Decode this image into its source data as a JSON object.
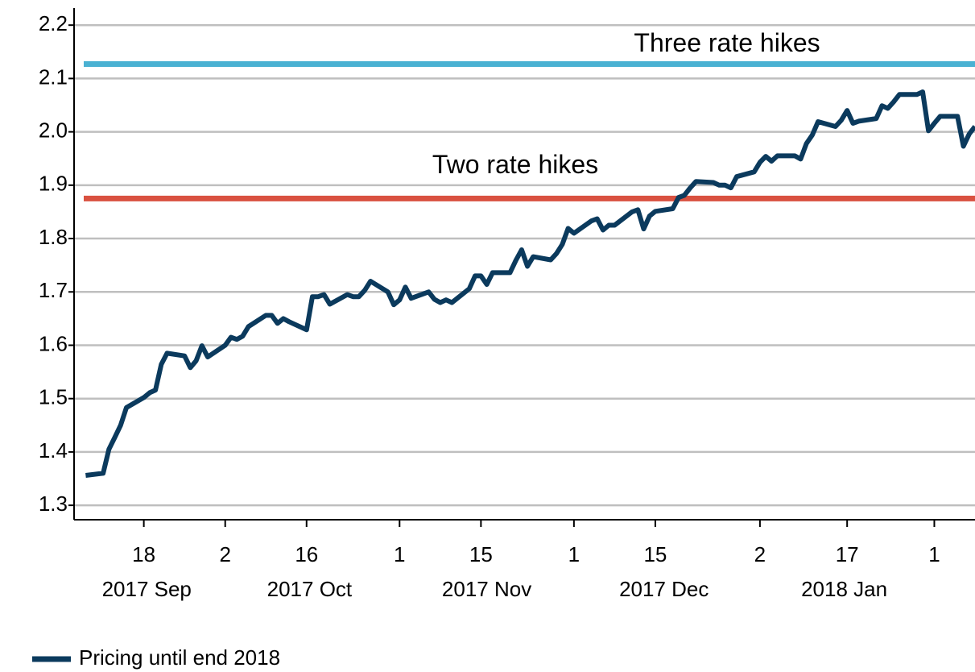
{
  "chart_data": {
    "type": "line",
    "x": [
      "2017-09-08",
      "2017-09-11",
      "2017-09-12",
      "2017-09-13",
      "2017-09-14",
      "2017-09-15",
      "2017-09-18",
      "2017-09-19",
      "2017-09-20",
      "2017-09-21",
      "2017-09-22",
      "2017-09-25",
      "2017-09-26",
      "2017-09-27",
      "2017-09-28",
      "2017-09-29",
      "2017-10-02",
      "2017-10-03",
      "2017-10-04",
      "2017-10-05",
      "2017-10-06",
      "2017-10-09",
      "2017-10-10",
      "2017-10-11",
      "2017-10-12",
      "2017-10-13",
      "2017-10-16",
      "2017-10-17",
      "2017-10-18",
      "2017-10-19",
      "2017-10-20",
      "2017-10-23",
      "2017-10-24",
      "2017-10-25",
      "2017-10-26",
      "2017-10-27",
      "2017-10-30",
      "2017-10-31",
      "2017-11-01",
      "2017-11-02",
      "2017-11-03",
      "2017-11-06",
      "2017-11-07",
      "2017-11-08",
      "2017-11-09",
      "2017-11-10",
      "2017-11-13",
      "2017-11-14",
      "2017-11-15",
      "2017-11-16",
      "2017-11-17",
      "2017-11-20",
      "2017-11-21",
      "2017-11-22",
      "2017-11-23",
      "2017-11-24",
      "2017-11-27",
      "2017-11-28",
      "2017-11-29",
      "2017-11-30",
      "2017-12-01",
      "2017-12-04",
      "2017-12-05",
      "2017-12-06",
      "2017-12-07",
      "2017-12-08",
      "2017-12-11",
      "2017-12-12",
      "2017-12-13",
      "2017-12-14",
      "2017-12-15",
      "2017-12-18",
      "2017-12-19",
      "2017-12-20",
      "2017-12-21",
      "2017-12-22",
      "2017-12-25",
      "2017-12-26",
      "2017-12-27",
      "2017-12-28",
      "2017-12-29",
      "2018-01-01",
      "2018-01-02",
      "2018-01-03",
      "2018-01-04",
      "2018-01-05",
      "2018-01-08",
      "2018-01-09",
      "2018-01-10",
      "2018-01-11",
      "2018-01-12",
      "2018-01-15",
      "2018-01-16",
      "2018-01-17",
      "2018-01-18",
      "2018-01-19",
      "2018-01-22",
      "2018-01-23",
      "2018-01-24",
      "2018-01-25",
      "2018-01-26",
      "2018-01-29",
      "2018-01-30",
      "2018-01-31",
      "2018-02-01",
      "2018-02-02",
      "2018-02-05",
      "2018-02-06",
      "2018-02-07",
      "2018-02-08"
    ],
    "series": [
      {
        "name": "Pricing until end 2018",
        "color": "#0b3a5d",
        "values": [
          1.356,
          1.36,
          1.405,
          1.427,
          1.45,
          1.483,
          1.502,
          1.511,
          1.516,
          1.564,
          1.585,
          1.58,
          1.558,
          1.571,
          1.599,
          1.578,
          1.6,
          1.615,
          1.611,
          1.617,
          1.635,
          1.656,
          1.656,
          1.641,
          1.65,
          1.644,
          1.629,
          1.691,
          1.691,
          1.695,
          1.677,
          1.695,
          1.691,
          1.691,
          1.703,
          1.72,
          1.7,
          1.676,
          1.685,
          1.709,
          1.688,
          1.7,
          1.686,
          1.68,
          1.685,
          1.68,
          1.706,
          1.73,
          1.73,
          1.714,
          1.736,
          1.736,
          1.759,
          1.779,
          1.748,
          1.766,
          1.76,
          1.772,
          1.789,
          1.819,
          1.81,
          1.833,
          1.837,
          1.816,
          1.825,
          1.825,
          1.85,
          1.854,
          1.818,
          1.842,
          1.851,
          1.856,
          1.877,
          1.881,
          1.895,
          1.907,
          1.905,
          1.9,
          1.9,
          1.895,
          1.916,
          1.925,
          1.943,
          1.954,
          1.945,
          1.955,
          1.955,
          1.949,
          1.978,
          1.994,
          2.019,
          2.01,
          2.022,
          2.04,
          2.016,
          2.02,
          2.025,
          2.049,
          2.044,
          2.056,
          2.07,
          2.07,
          2.075,
          2.002,
          2.016,
          2.029,
          2.029,
          1.973,
          1.996,
          2.01
        ]
      }
    ],
    "reference_lines": [
      {
        "label": "Three rate hikes",
        "value": 2.127,
        "color": "#4ab1d2"
      },
      {
        "label": "Two rate hikes",
        "value": 1.875,
        "color": "#d95140"
      }
    ],
    "xlim": [
      "2017-09-06",
      "2018-02-08"
    ],
    "xticks": [
      {
        "value": "2017-09-18",
        "label": "18"
      },
      {
        "value": "2017-10-02",
        "label": "2"
      },
      {
        "value": "2017-10-16",
        "label": "16"
      },
      {
        "value": "2017-11-01",
        "label": "1"
      },
      {
        "value": "2017-11-15",
        "label": "15"
      },
      {
        "value": "2017-12-01",
        "label": "1"
      },
      {
        "value": "2017-12-15",
        "label": "15"
      },
      {
        "value": "2018-01-02",
        "label": "2"
      },
      {
        "value": "2018-01-17",
        "label": "17"
      },
      {
        "value": "2018-02-01",
        "label": "1"
      }
    ],
    "month_labels": [
      {
        "value": "2017-09",
        "label": "2017 Sep"
      },
      {
        "value": "2017-10",
        "label": "2017 Oct"
      },
      {
        "value": "2017-11",
        "label": "2017 Nov"
      },
      {
        "value": "2017-12",
        "label": "2017 Dec"
      },
      {
        "value": "2018-01",
        "label": "2018 Jan"
      }
    ],
    "ylim": [
      1.273,
      2.232
    ],
    "yticks": [
      1.3,
      1.4,
      1.5,
      1.6,
      1.7,
      1.8,
      1.9,
      {
        "value": 2,
        "label": "2.0"
      },
      2.1,
      2.2
    ],
    "grid": true,
    "legend": "bottom-left"
  }
}
